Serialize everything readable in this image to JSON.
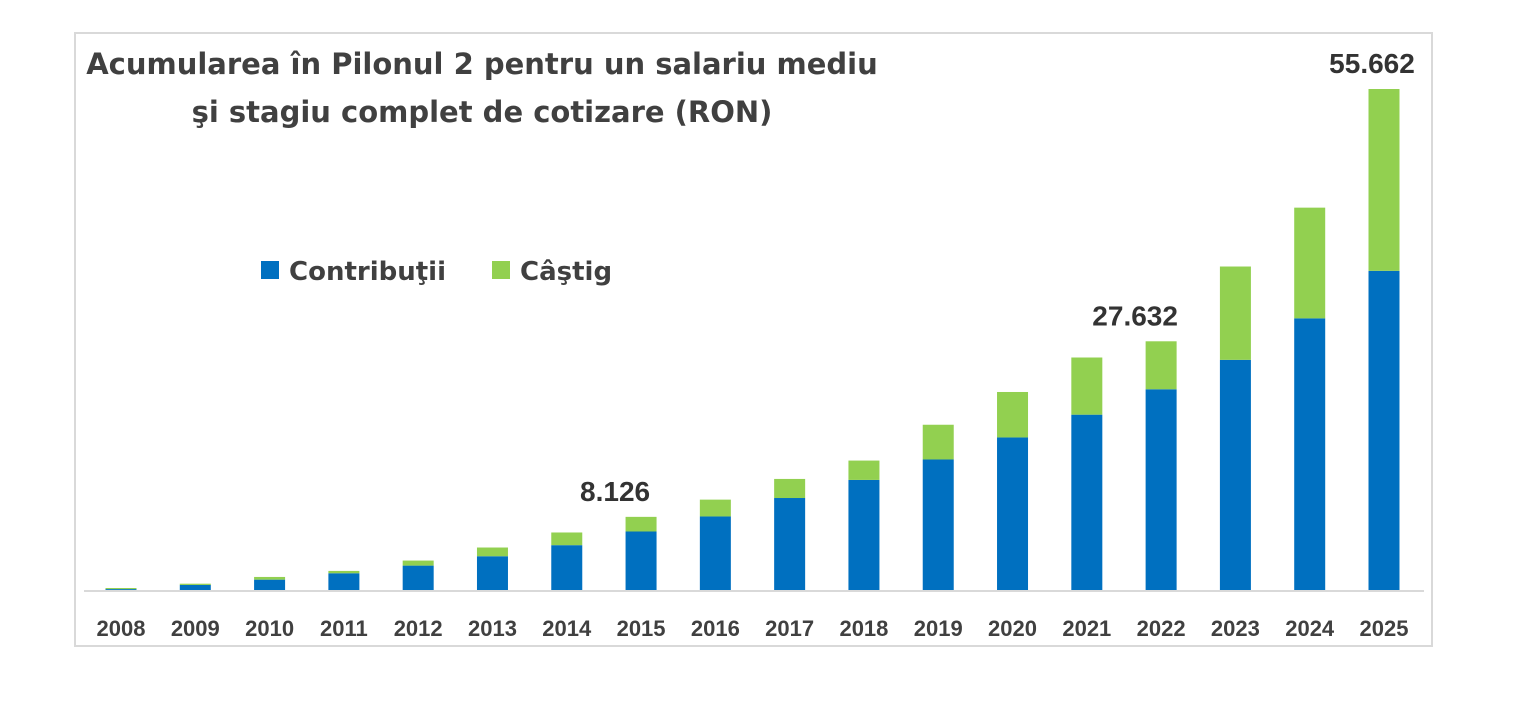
{
  "chart_data": {
    "type": "bar",
    "stacked": true,
    "title_lines": [
      "Acumularea în Pilonul 2 pentru un salariu mediu",
      "şi stagiu complet de cotizare (RON)"
    ],
    "xlabel": "",
    "ylabel": "",
    "ylim": [
      0,
      56000
    ],
    "grid": false,
    "legend_position": "top-left",
    "categories": [
      "2008",
      "2009",
      "2010",
      "2011",
      "2012",
      "2013",
      "2014",
      "2015",
      "2016",
      "2017",
      "2018",
      "2019",
      "2020",
      "2021",
      "2022",
      "2023",
      "2024",
      "2025"
    ],
    "series": [
      {
        "name": "Contribuţii",
        "color": "#0070C0",
        "values": [
          100,
          560,
          1150,
          1860,
          2710,
          3750,
          4980,
          6500,
          8170,
          10220,
          12230,
          14500,
          16950,
          19480,
          22300,
          25570,
          30180,
          35460
        ]
      },
      {
        "name": "Câştig",
        "color": "#92D050",
        "values": [
          120,
          140,
          300,
          260,
          560,
          970,
          1410,
          1626,
          1870,
          2120,
          2150,
          3860,
          5050,
          6350,
          5332,
          10370,
          12300,
          20202
        ]
      }
    ],
    "data_labels": [
      {
        "category": "2015",
        "text": "8.126"
      },
      {
        "category": "2022",
        "text": "27.632"
      },
      {
        "category": "2025",
        "text": "55.662"
      }
    ]
  }
}
